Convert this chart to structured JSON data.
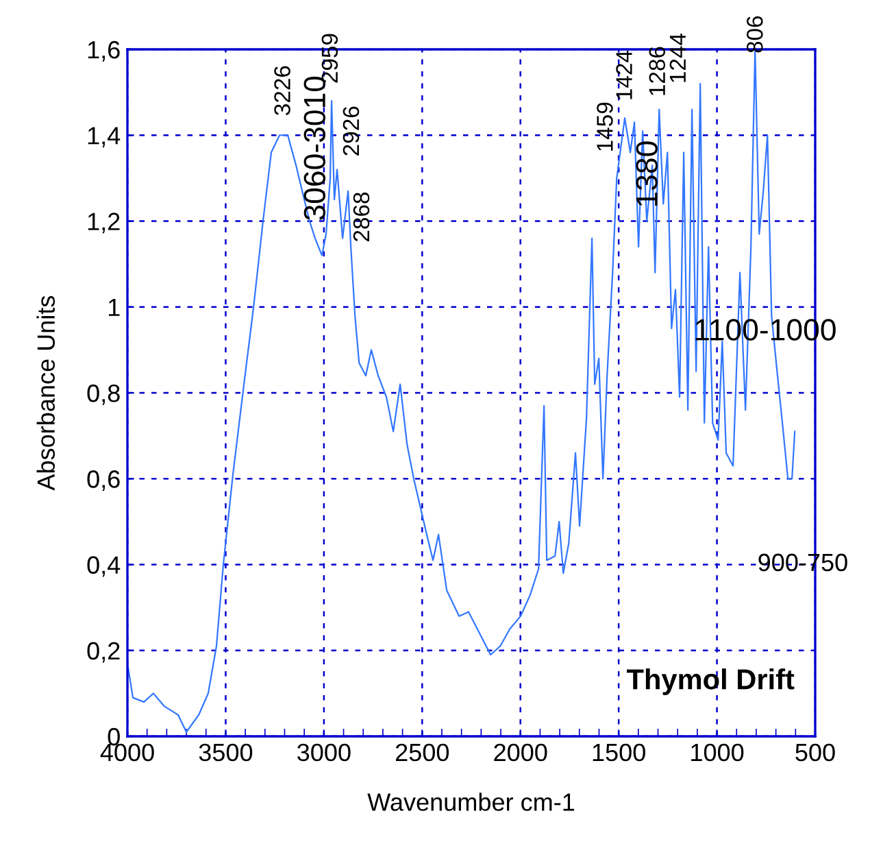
{
  "chart_data": {
    "type": "line",
    "xlabel": "Wavenumber cm-1",
    "ylabel": "Absorbance Units",
    "xlim": [
      4000,
      500
    ],
    "ylim": [
      0,
      1.6
    ],
    "xticks": [
      4000,
      3500,
      3000,
      2500,
      2000,
      1500,
      1000,
      500
    ],
    "yticks": [
      0,
      {
        "value": 0.2,
        "label": "0,2"
      },
      {
        "value": 0.4,
        "label": "0,4"
      },
      {
        "value": 0.6,
        "label": "0,6"
      },
      {
        "value": 0.8,
        "label": "0,8"
      },
      1,
      {
        "value": 1.2,
        "label": "1,2"
      },
      {
        "value": 1.4,
        "label": "1,4"
      },
      {
        "value": 1.6,
        "label": "1,6"
      }
    ],
    "grid": true,
    "line_style": "solid",
    "marker": "none",
    "series": [
      {
        "color": "#3377ff",
        "x": [
          4000,
          3972,
          3916,
          3868,
          3812,
          3742,
          3700,
          3637,
          3589,
          3547,
          3512,
          3463,
          3407,
          3358,
          3310,
          3268,
          3226,
          3184,
          3142,
          3100,
          3073,
          3045,
          3010,
          2989,
          2968,
          2961,
          2947,
          2933,
          2905,
          2877,
          2863,
          2842,
          2821,
          2787,
          2759,
          2724,
          2682,
          2647,
          2612,
          2577,
          2543,
          2487,
          2445,
          2417,
          2375,
          2312,
          2264,
          2208,
          2152,
          2103,
          2054,
          1999,
          1950,
          1908,
          1880,
          1866,
          1824,
          1803,
          1782,
          1754,
          1720,
          1699,
          1664,
          1636,
          1622,
          1601,
          1580,
          1559,
          1531,
          1510,
          1469,
          1441,
          1420,
          1399,
          1378,
          1357,
          1329,
          1315,
          1294,
          1273,
          1252,
          1231,
          1211,
          1190,
          1169,
          1148,
          1127,
          1106,
          1085,
          1064,
          1043,
          1022,
          994,
          973,
          953,
          918,
          883,
          855,
          827,
          806,
          785,
          764,
          743,
          722,
          694,
          667,
          639,
          618,
          604
        ],
        "values": [
          0.17,
          0.09,
          0.08,
          0.1,
          0.07,
          0.05,
          0.01,
          0.05,
          0.1,
          0.21,
          0.4,
          0.61,
          0.82,
          1.0,
          1.2,
          1.36,
          1.4,
          1.4,
          1.33,
          1.25,
          1.2,
          1.16,
          1.12,
          1.17,
          1.3,
          1.48,
          1.25,
          1.32,
          1.16,
          1.27,
          1.14,
          0.98,
          0.87,
          0.84,
          0.9,
          0.84,
          0.79,
          0.71,
          0.82,
          0.68,
          0.6,
          0.49,
          0.41,
          0.47,
          0.34,
          0.28,
          0.29,
          0.24,
          0.19,
          0.21,
          0.25,
          0.28,
          0.33,
          0.39,
          0.77,
          0.41,
          0.42,
          0.5,
          0.38,
          0.45,
          0.66,
          0.49,
          0.74,
          1.16,
          0.82,
          0.88,
          0.6,
          0.84,
          1.08,
          1.3,
          1.44,
          1.36,
          1.43,
          1.14,
          1.41,
          1.2,
          1.33,
          1.08,
          1.46,
          1.24,
          1.36,
          0.95,
          1.04,
          0.79,
          1.36,
          0.76,
          1.46,
          0.85,
          1.52,
          0.73,
          1.14,
          0.73,
          0.69,
          0.92,
          0.66,
          0.63,
          1.08,
          0.76,
          1.14,
          1.6,
          1.17,
          1.27,
          1.4,
          0.98,
          0.85,
          0.73,
          0.6,
          0.6,
          0.71
        ]
      }
    ],
    "annotations": [
      "3226",
      "3060-3010",
      "2959",
      "2926",
      "2868",
      "1459",
      "1424",
      "1380",
      "1286",
      "1244",
      "806",
      "1100-1000",
      "900-750",
      "Thymol Drift"
    ]
  }
}
